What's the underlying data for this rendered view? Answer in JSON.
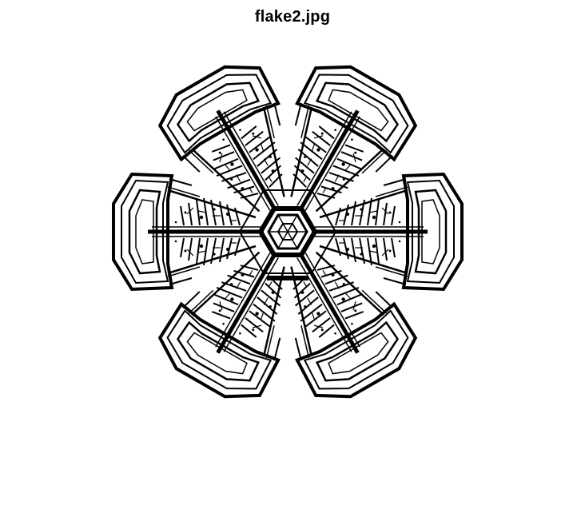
{
  "figure": {
    "title": "flake2.jpg",
    "background_color": "#ffffff",
    "ink_color": "#000000"
  },
  "image": {
    "subject": "snowflake",
    "style": "binary edge-detected image",
    "arms": 6
  }
}
